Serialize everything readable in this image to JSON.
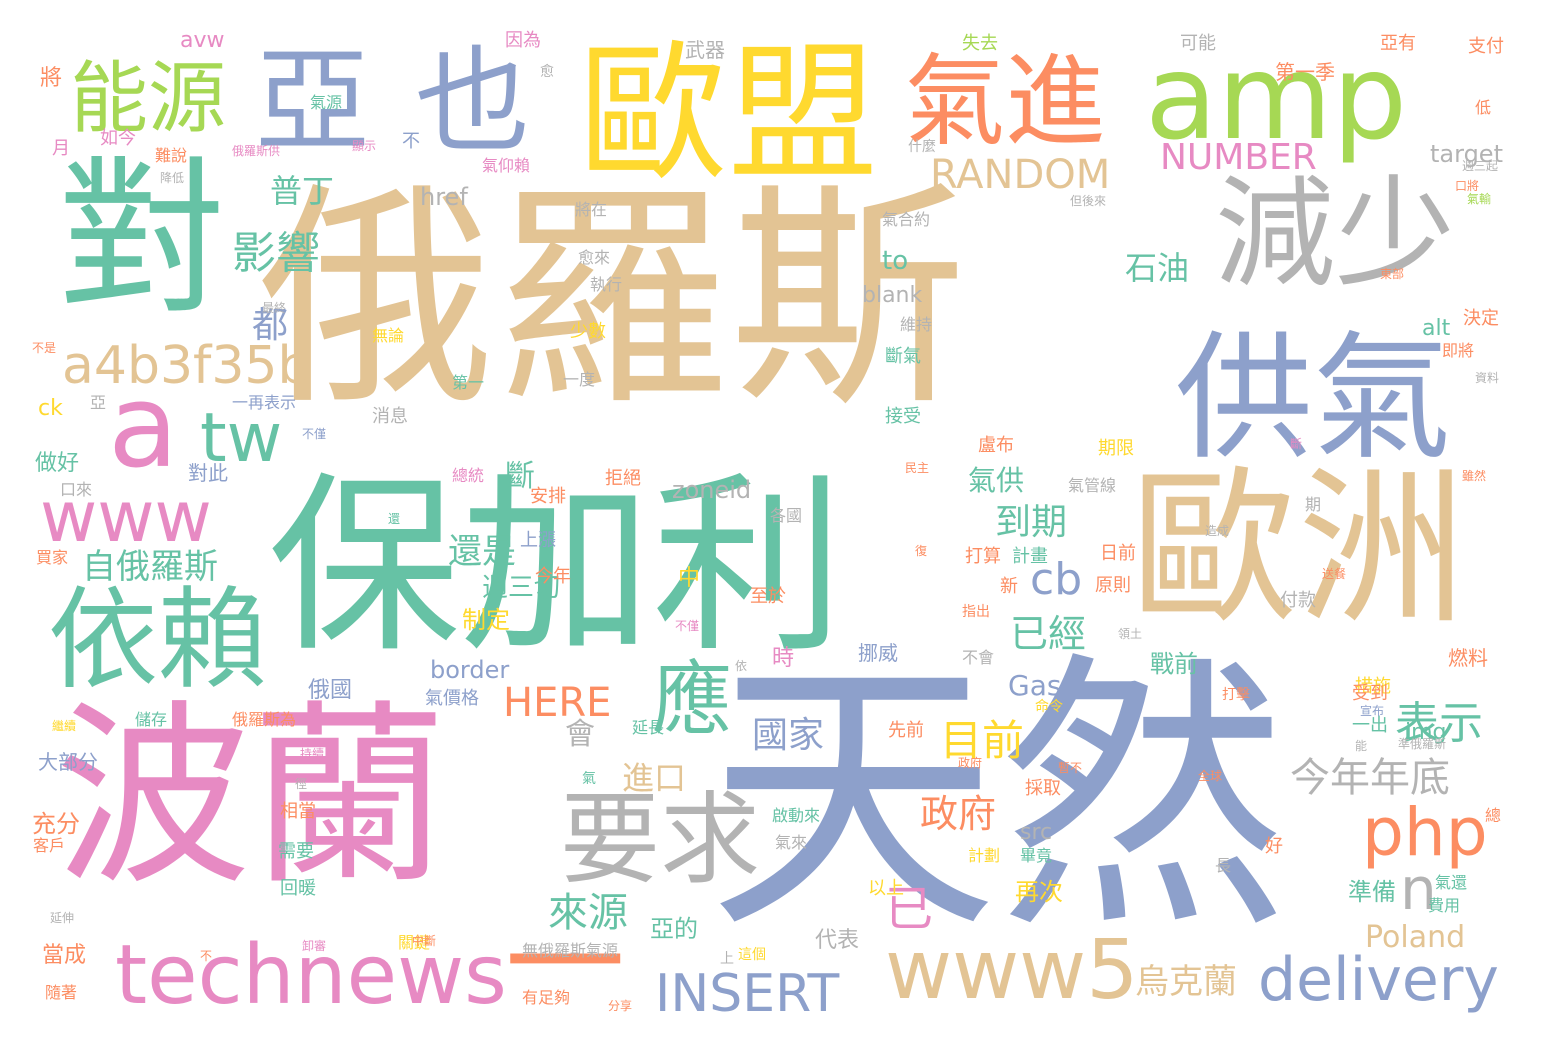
{
  "palette": {
    "tan": "#e3c494",
    "sage": "#66c2a5",
    "blue": "#8da0cb",
    "pink": "#e78ac3",
    "lime": "#a6d854",
    "yellow": "#ffd92f",
    "orange": "#fc8d62",
    "gray": "#b3b3b3"
  },
  "words": [
    {
      "text": "俄羅斯",
      "color": "tan"
    },
    {
      "text": "天然",
      "color": "blue"
    },
    {
      "text": "保加利",
      "color": "sage"
    },
    {
      "text": "波蘭",
      "color": "pink"
    },
    {
      "text": "歐盟",
      "color": "yellow"
    },
    {
      "text": "亞",
      "color": "blue"
    },
    {
      "text": "也",
      "color": "blue"
    },
    {
      "text": "amp",
      "color": "lime"
    },
    {
      "text": "氣進",
      "color": "orange"
    },
    {
      "text": "對",
      "color": "sage"
    },
    {
      "text": "減少",
      "color": "gray"
    },
    {
      "text": "供氣",
      "color": "blue"
    },
    {
      "text": "歐洲",
      "color": "tan"
    },
    {
      "text": "能源",
      "color": "lime"
    },
    {
      "text": "依賴",
      "color": "sage"
    },
    {
      "text": "要求",
      "color": "gray"
    },
    {
      "text": "technews",
      "color": "pink"
    },
    {
      "text": "www5",
      "color": "tan"
    },
    {
      "text": "www",
      "color": "pink"
    },
    {
      "text": "a",
      "color": "pink"
    },
    {
      "text": "tw",
      "color": "sage"
    },
    {
      "text": "a4b3f35b",
      "color": "tan"
    },
    {
      "text": "應",
      "color": "sage"
    },
    {
      "text": "php",
      "color": "orange"
    },
    {
      "text": "delivery",
      "color": "blue"
    },
    {
      "text": "INSERT",
      "color": "blue"
    },
    {
      "text": "RANDOM",
      "color": "tan"
    },
    {
      "text": "NUMBER",
      "color": "pink"
    },
    {
      "text": "HERE",
      "color": "orange"
    },
    {
      "text": "今年年底",
      "color": "gray"
    },
    {
      "text": "表示",
      "color": "sage"
    },
    {
      "text": "一",
      "color": "orange"
    },
    {
      "text": "影響",
      "color": "sage"
    },
    {
      "text": "自俄羅斯",
      "color": "sage"
    },
    {
      "text": "到期",
      "color": "sage"
    },
    {
      "text": "已經",
      "color": "sage"
    },
    {
      "text": "cb",
      "color": "blue"
    },
    {
      "text": "目前",
      "color": "yellow"
    },
    {
      "text": "政府",
      "color": "orange"
    },
    {
      "text": "來源",
      "color": "sage"
    },
    {
      "text": "n",
      "color": "gray"
    },
    {
      "text": "石油",
      "color": "sage"
    },
    {
      "text": "普丁",
      "color": "sage"
    },
    {
      "text": "都",
      "color": "blue"
    },
    {
      "text": "進口",
      "color": "tan"
    },
    {
      "text": "國家",
      "color": "blue"
    },
    {
      "text": "還是",
      "color": "sage"
    },
    {
      "text": "烏克蘭",
      "color": "tan"
    },
    {
      "text": "Poland",
      "color": "tan"
    },
    {
      "text": "Gas",
      "color": "blue"
    },
    {
      "text": "已",
      "color": "pink"
    },
    {
      "text": "to",
      "color": "sage"
    },
    {
      "text": "blank",
      "color": "gray"
    },
    {
      "text": "zoneid",
      "color": "gray"
    },
    {
      "text": "border",
      "color": "blue"
    },
    {
      "text": "href",
      "color": "gray"
    },
    {
      "text": "target",
      "color": "gray"
    },
    {
      "text": "src",
      "color": "gray"
    },
    {
      "text": "img",
      "color": "sage"
    },
    {
      "text": "alt",
      "color": "sage"
    },
    {
      "text": "ck",
      "color": "yellow"
    },
    {
      "text": "avw",
      "color": "pink"
    },
    {
      "text": "做好",
      "color": "sage"
    },
    {
      "text": "對此",
      "color": "blue"
    },
    {
      "text": "斷",
      "color": "sage"
    },
    {
      "text": "氣供",
      "color": "sage"
    },
    {
      "text": "週三切",
      "color": "sage"
    },
    {
      "text": "會",
      "color": "gray"
    },
    {
      "text": "制定",
      "color": "yellow"
    },
    {
      "text": "亞的",
      "color": "sage"
    },
    {
      "text": "代表",
      "color": "gray"
    },
    {
      "text": "戰前",
      "color": "sage"
    },
    {
      "text": "再次",
      "color": "yellow"
    },
    {
      "text": "準備",
      "color": "sage"
    },
    {
      "text": "充分",
      "color": "orange"
    },
    {
      "text": "當成",
      "color": "orange"
    },
    {
      "text": "大部分",
      "color": "blue"
    },
    {
      "text": "俄國",
      "color": "blue"
    },
    {
      "text": "武器",
      "color": "gray"
    },
    {
      "text": "失去",
      "color": "lime"
    },
    {
      "text": "第一季",
      "color": "orange"
    },
    {
      "text": "可能",
      "color": "gray"
    },
    {
      "text": "因為",
      "color": "pink"
    },
    {
      "text": "將",
      "color": "orange"
    },
    {
      "text": "支付",
      "color": "orange"
    },
    {
      "text": "亞有",
      "color": "orange"
    },
    {
      "text": "時",
      "color": "pink"
    },
    {
      "text": "中",
      "color": "yellow"
    },
    {
      "text": "挪威",
      "color": "blue"
    },
    {
      "text": "無俄羅斯氣源",
      "color": "gray"
    },
    {
      "text": "相當",
      "color": "orange"
    },
    {
      "text": "回暖",
      "color": "sage"
    },
    {
      "text": "需要",
      "color": "sage"
    },
    {
      "text": "期限",
      "color": "yellow"
    },
    {
      "text": "盧布",
      "color": "orange"
    },
    {
      "text": "接受",
      "color": "sage"
    },
    {
      "text": "斷氣",
      "color": "sage"
    },
    {
      "text": "維持",
      "color": "gray"
    },
    {
      "text": "決定",
      "color": "orange"
    },
    {
      "text": "即將",
      "color": "orange"
    },
    {
      "text": "燃料",
      "color": "orange"
    },
    {
      "text": "措施",
      "color": "yellow"
    },
    {
      "text": "付款",
      "color": "gray"
    },
    {
      "text": "原則",
      "color": "orange"
    },
    {
      "text": "日前",
      "color": "orange"
    },
    {
      "text": "計畫",
      "color": "sage"
    },
    {
      "text": "打算",
      "color": "orange"
    },
    {
      "text": "新",
      "color": "orange"
    },
    {
      "text": "上漲",
      "color": "blue"
    },
    {
      "text": "安排",
      "color": "orange"
    },
    {
      "text": "各國",
      "color": "gray"
    },
    {
      "text": "今年",
      "color": "orange"
    },
    {
      "text": "至於",
      "color": "orange"
    },
    {
      "text": "拒絕",
      "color": "orange"
    },
    {
      "text": "消息",
      "color": "gray"
    },
    {
      "text": "少數",
      "color": "yellow"
    },
    {
      "text": "無論",
      "color": "yellow"
    },
    {
      "text": "執行",
      "color": "gray"
    },
    {
      "text": "愈來",
      "color": "gray"
    },
    {
      "text": "將在",
      "color": "gray"
    },
    {
      "text": "一度",
      "color": "gray"
    },
    {
      "text": "一再表示",
      "color": "blue"
    },
    {
      "text": "氣合約",
      "color": "gray"
    },
    {
      "text": "氣仰賴",
      "color": "pink"
    },
    {
      "text": "什麼",
      "color": "gray"
    },
    {
      "text": "如今",
      "color": "pink"
    },
    {
      "text": "難說",
      "color": "orange"
    },
    {
      "text": "月",
      "color": "pink"
    },
    {
      "text": "氣源",
      "color": "sage"
    },
    {
      "text": "不",
      "color": "blue"
    },
    {
      "text": "買家",
      "color": "orange"
    },
    {
      "text": "客戶",
      "color": "orange"
    },
    {
      "text": "隨著",
      "color": "orange"
    },
    {
      "text": "延長",
      "color": "sage"
    },
    {
      "text": "先前",
      "color": "orange"
    },
    {
      "text": "儲存",
      "color": "sage"
    },
    {
      "text": "俄羅斯為",
      "color": "orange"
    },
    {
      "text": "一出",
      "color": "sage"
    },
    {
      "text": "受到",
      "color": "orange"
    },
    {
      "text": "好",
      "color": "orange"
    },
    {
      "text": "長",
      "color": "gray"
    },
    {
      "text": "上",
      "color": "gray"
    },
    {
      "text": "以上",
      "color": "yellow"
    },
    {
      "text": "採取",
      "color": "orange"
    },
    {
      "text": "不會",
      "color": "gray"
    },
    {
      "text": "氣價格",
      "color": "blue"
    },
    {
      "text": "有足夠",
      "color": "orange"
    },
    {
      "text": "關鍵",
      "color": "yellow"
    },
    {
      "text": "氣來",
      "color": "gray"
    },
    {
      "text": "啟動來",
      "color": "sage"
    },
    {
      "text": "計劃",
      "color": "yellow"
    },
    {
      "text": "畢竟",
      "color": "sage"
    },
    {
      "text": "費用",
      "color": "sage"
    },
    {
      "text": "氣還",
      "color": "sage"
    },
    {
      "text": "總",
      "color": "orange"
    },
    {
      "text": "低",
      "color": "orange"
    },
    {
      "text": "第一",
      "color": "sage"
    },
    {
      "text": "期",
      "color": "gray"
    },
    {
      "text": "這個",
      "color": "yellow"
    },
    {
      "text": "雖然",
      "color": "orange"
    },
    {
      "text": "打擊",
      "color": "orange"
    },
    {
      "text": "命令",
      "color": "yellow"
    },
    {
      "text": "領土",
      "color": "gray"
    },
    {
      "text": "指出",
      "color": "orange"
    },
    {
      "text": "口來",
      "color": "gray"
    },
    {
      "text": "不僅",
      "color": "blue"
    },
    {
      "text": "不是",
      "color": "orange"
    },
    {
      "text": "最終",
      "color": "gray"
    },
    {
      "text": "亞",
      "color": "gray"
    },
    {
      "text": "資料",
      "color": "gray"
    },
    {
      "text": "氣輸",
      "color": "lime"
    },
    {
      "text": "東部",
      "color": "orange"
    },
    {
      "text": "民主",
      "color": "orange"
    },
    {
      "text": "還",
      "color": "sage"
    },
    {
      "text": "復",
      "color": "orange"
    },
    {
      "text": "不僅",
      "color": "pink"
    },
    {
      "text": "依",
      "color": "gray"
    },
    {
      "text": "造成",
      "color": "gray"
    },
    {
      "text": "送餐",
      "color": "orange"
    },
    {
      "text": "中斷",
      "color": "orange"
    },
    {
      "text": "卸審",
      "color": "pink"
    },
    {
      "text": "繼續",
      "color": "yellow"
    },
    {
      "text": "全球",
      "color": "orange"
    },
    {
      "text": "俄羅斯供",
      "color": "pink"
    },
    {
      "text": "顯示",
      "color": "pink"
    },
    {
      "text": "但後來",
      "color": "gray"
    },
    {
      "text": "口將",
      "color": "orange"
    },
    {
      "text": "週三起",
      "color": "gray"
    },
    {
      "text": "氣管線",
      "color": "gray"
    },
    {
      "text": "總統",
      "color": "pink"
    },
    {
      "text": "斷",
      "color": "pink"
    },
    {
      "text": "持續",
      "color": "pink"
    },
    {
      "text": "徑",
      "color": "gray"
    },
    {
      "text": "能",
      "color": "gray"
    },
    {
      "text": "暫不",
      "color": "orange"
    },
    {
      "text": "準俄羅斯",
      "color": "gray"
    },
    {
      "text": "政府",
      "color": "orange"
    },
    {
      "text": "分享",
      "color": "orange"
    },
    {
      "text": "延伸",
      "color": "gray"
    },
    {
      "text": "不",
      "color": "orange"
    },
    {
      "text": "愈",
      "color": "gray"
    },
    {
      "text": "氣",
      "color": "sage"
    },
    {
      "text": "降低",
      "color": "gray"
    },
    {
      "text": "宣布",
      "color": "blue"
    }
  ]
}
